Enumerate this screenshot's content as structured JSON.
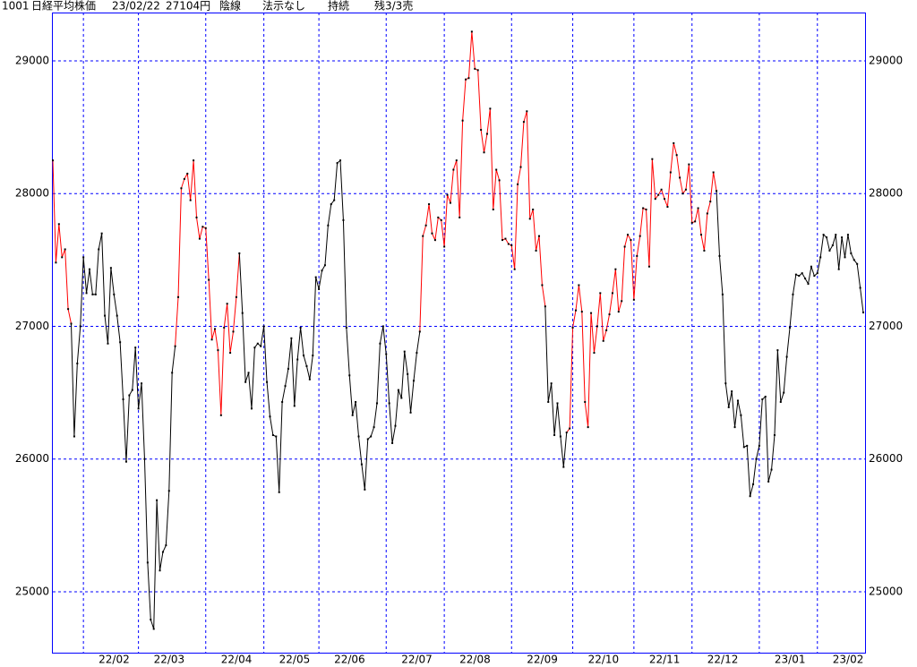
{
  "chart_data": {
    "type": "line",
    "title": [
      "1001",
      "日経平均株価",
      "23/02/22",
      "27104円",
      "陰線",
      "法示なし",
      "持続",
      "残3/3売"
    ],
    "values": [
      28250,
      27480,
      27770,
      27520,
      27580,
      27130,
      27020,
      26170,
      26720,
      27000,
      27520,
      27250,
      27430,
      27240,
      27240,
      27580,
      27700,
      27080,
      26870,
      27440,
      27240,
      27080,
      26880,
      26450,
      25980,
      26480,
      26520,
      26840,
      26380,
      26570,
      26000,
      25220,
      24790,
      24720,
      25690,
      25160,
      25300,
      25350,
      25760,
      26650,
      26850,
      27220,
      28040,
      28110,
      28150,
      27950,
      28250,
      27820,
      27660,
      27750,
      27740,
      27350,
      26900,
      26980,
      26820,
      26330,
      26990,
      27170,
      26800,
      26960,
      27220,
      27550,
      27100,
      26580,
      26650,
      26380,
      26840,
      26870,
      26850,
      27000,
      26580,
      26320,
      26180,
      26170,
      25750,
      26430,
      26550,
      26680,
      26910,
      26400,
      26750,
      26990,
      26780,
      26700,
      26600,
      26780,
      27370,
      27280,
      27420,
      27460,
      27760,
      27920,
      27950,
      28230,
      28250,
      27800,
      26990,
      26630,
      26330,
      26430,
      26170,
      25960,
      25770,
      26150,
      26170,
      26240,
      26420,
      26870,
      27000,
      26790,
      26420,
      26120,
      26250,
      26520,
      26460,
      26810,
      26640,
      26350,
      26590,
      26800,
      26960,
      27680,
      27760,
      27920,
      27700,
      27650,
      27820,
      27800,
      27600,
      27990,
      27930,
      28180,
      28250,
      27820,
      28550,
      28860,
      28870,
      29220,
      28940,
      28930,
      28480,
      28310,
      28450,
      28640,
      27880,
      28180,
      28100,
      27650,
      27660,
      27620,
      27610,
      27430,
      28070,
      28200,
      28540,
      28620,
      27810,
      27880,
      27570,
      27680,
      27310,
      27150,
      26430,
      26570,
      26180,
      26420,
      26170,
      25940,
      26200,
      26230,
      26990,
      27120,
      27310,
      27110,
      26430,
      26240,
      27100,
      26800,
      27000,
      27250,
      26890,
      26970,
      27090,
      27250,
      27430,
      27110,
      27190,
      27600,
      27690,
      27650,
      27200,
      27530,
      27680,
      27890,
      27880,
      27450,
      28260,
      27960,
      27990,
      28030,
      27960,
      27900,
      28160,
      28380,
      28290,
      28120,
      28000,
      28030,
      28220,
      27780,
      27790,
      27890,
      27690,
      27570,
      27850,
      27940,
      28160,
      28020,
      27530,
      27240,
      26570,
      26390,
      26510,
      26240,
      26440,
      26330,
      26090,
      26100,
      25720,
      25810,
      26000,
      26100,
      26450,
      26470,
      25830,
      25920,
      26180,
      26820,
      26430,
      26500,
      26770,
      26990,
      27240,
      27390,
      27380,
      27400,
      27360,
      27320,
      27450,
      27380,
      27400,
      27520,
      27690,
      27670,
      27570,
      27610,
      27690,
      27430,
      27670,
      27520,
      27690,
      27550,
      27500,
      27470,
      27290,
      27104
    ],
    "colors": [
      "red",
      "red",
      "red",
      "red",
      "red",
      "red",
      "red",
      "black",
      "black",
      "black",
      "black",
      "black",
      "black",
      "black",
      "black",
      "black",
      "black",
      "black",
      "black",
      "black",
      "black",
      "black",
      "black",
      "black",
      "black",
      "black",
      "black",
      "black",
      "black",
      "black",
      "black",
      "black",
      "black",
      "black",
      "black",
      "black",
      "black",
      "black",
      "black",
      "black",
      "black",
      "red",
      "red",
      "red",
      "red",
      "red",
      "red",
      "red",
      "red",
      "red",
      "red",
      "red",
      "red",
      "red",
      "red",
      "red",
      "red",
      "red",
      "red",
      "red",
      "red",
      "red",
      "black",
      "black",
      "black",
      "black",
      "black",
      "black",
      "black",
      "black",
      "black",
      "black",
      "black",
      "black",
      "black",
      "black",
      "black",
      "black",
      "black",
      "black",
      "black",
      "black",
      "black",
      "black",
      "black",
      "black",
      "black",
      "black",
      "black",
      "black",
      "black",
      "black",
      "black",
      "black",
      "black",
      "black",
      "black",
      "black",
      "black",
      "black",
      "black",
      "black",
      "black",
      "black",
      "black",
      "black",
      "black",
      "black",
      "black",
      "black",
      "black",
      "black",
      "black",
      "black",
      "black",
      "black",
      "black",
      "black",
      "black",
      "black",
      "black",
      "red",
      "red",
      "red",
      "red",
      "red",
      "red",
      "red",
      "red",
      "red",
      "red",
      "red",
      "red",
      "red",
      "red",
      "red",
      "red",
      "red",
      "red",
      "red",
      "red",
      "red",
      "red",
      "red",
      "red",
      "red",
      "red",
      "red",
      "red",
      "red",
      "red",
      "red",
      "red",
      "red",
      "red",
      "red",
      "red",
      "red",
      "red",
      "red",
      "red",
      "red",
      "black",
      "black",
      "black",
      "black",
      "black",
      "black",
      "black",
      "red",
      "red",
      "red",
      "red",
      "red",
      "red",
      "red",
      "red",
      "red",
      "red",
      "red",
      "red",
      "red",
      "red",
      "red",
      "red",
      "red",
      "red",
      "red",
      "red",
      "red",
      "red",
      "red",
      "red",
      "red",
      "red",
      "red",
      "red",
      "red",
      "red",
      "red",
      "red",
      "red",
      "red",
      "red",
      "red",
      "red",
      "red",
      "red",
      "red",
      "red",
      "red",
      "red",
      "red",
      "red",
      "red",
      "red",
      "red",
      "red",
      "black",
      "black",
      "black",
      "black",
      "black",
      "black",
      "black",
      "black",
      "black",
      "black",
      "black",
      "black",
      "black",
      "black",
      "black",
      "black",
      "black",
      "black",
      "black",
      "black",
      "black",
      "black",
      "black",
      "black",
      "black",
      "black",
      "black",
      "black",
      "black",
      "black",
      "black",
      "black",
      "black",
      "black",
      "black",
      "black",
      "black",
      "black",
      "black",
      "black",
      "black",
      "black",
      "black",
      "black",
      "black",
      "black",
      "black",
      "black"
    ],
    "xlim": [
      0,
      265
    ],
    "xticks": [
      {
        "value": 10,
        "label": "22/02"
      },
      {
        "value": 28,
        "label": "22/03"
      },
      {
        "value": 50,
        "label": "22/04"
      },
      {
        "value": 69,
        "label": "22/05"
      },
      {
        "value": 87,
        "label": "22/06"
      },
      {
        "value": 109,
        "label": "22/07"
      },
      {
        "value": 128,
        "label": "22/08"
      },
      {
        "value": 150,
        "label": "22/09"
      },
      {
        "value": 170,
        "label": "22/10"
      },
      {
        "value": 190,
        "label": "22/11"
      },
      {
        "value": 209,
        "label": "22/12"
      },
      {
        "value": 231,
        "label": "23/01"
      },
      {
        "value": 250,
        "label": "23/02"
      }
    ],
    "ylim": [
      24541,
      29364
    ],
    "yticks": [
      25000,
      26000,
      27000,
      28000,
      29000
    ],
    "grid": true,
    "point_color": "#000000",
    "grid_color": "#0000ff"
  }
}
